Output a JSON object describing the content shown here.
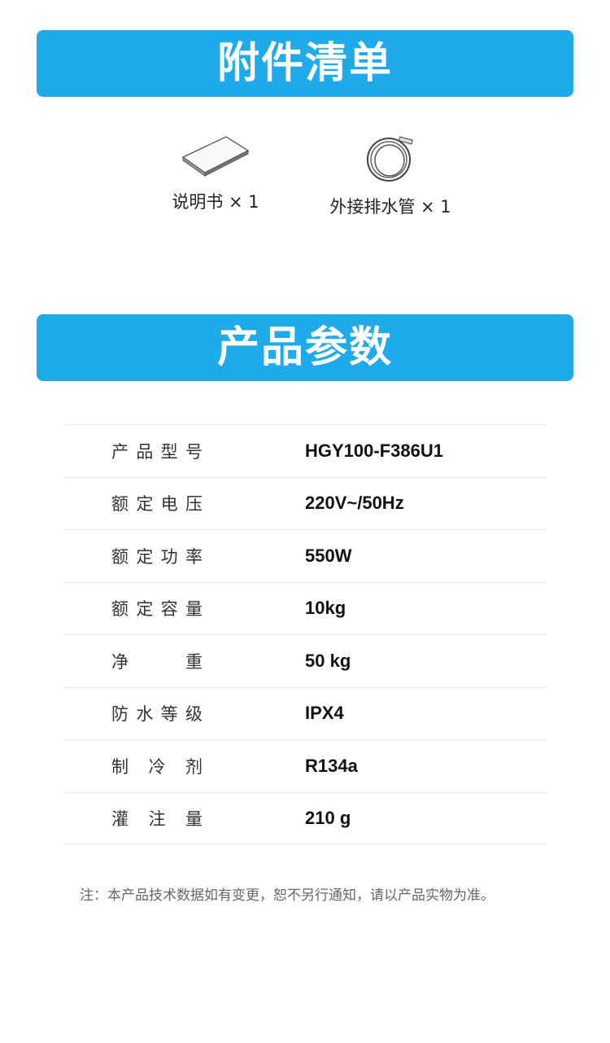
{
  "accessories": {
    "title": "附件清单",
    "items": [
      {
        "label": "说明书 × 1",
        "icon": "manual-book-icon"
      },
      {
        "label": "外接排水管 × 1",
        "icon": "drain-hose-icon"
      }
    ]
  },
  "specs": {
    "title": "产品参数",
    "rows": [
      {
        "key": "产品型号",
        "value": "HGY100-F386U1"
      },
      {
        "key": "额定电压",
        "value": "220V~/50Hz"
      },
      {
        "key": "额定功率",
        "value": "550W"
      },
      {
        "key": "额定容量",
        "value": "10kg"
      },
      {
        "key": "净重",
        "value": "50 kg"
      },
      {
        "key": "防水等级",
        "value": "IPX4"
      },
      {
        "key": "制冷剂",
        "value": "R134a"
      },
      {
        "key": "灌注量",
        "value": "210 g"
      }
    ]
  },
  "note": "注：本产品技术数据如有变更，恕不另行通知，请以产品实物为准。",
  "colors": {
    "banner": "#1eaaeb"
  }
}
